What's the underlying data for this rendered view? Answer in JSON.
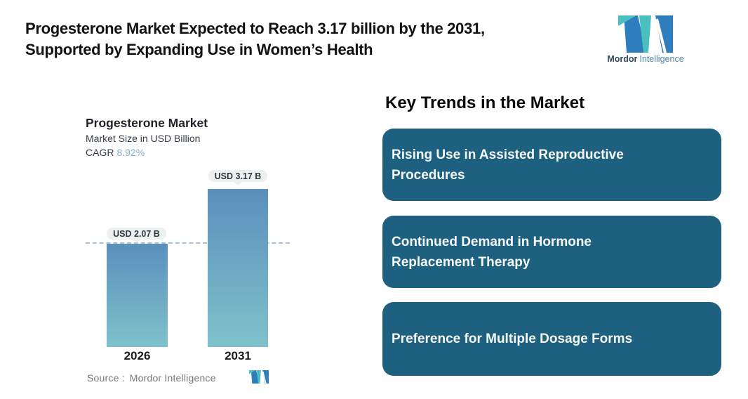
{
  "page": {
    "title_line1": "Progesterone Market Expected to Reach 3.17 billion by the 2031,",
    "title_line2": "Supported by Expanding Use in Women’s Health"
  },
  "brand": {
    "name_bold": "Mordor",
    "name_light": "Intelligence",
    "teal": "#4bbfc0",
    "blue": "#2e7dbc"
  },
  "chart": {
    "title": "Progesterone Market",
    "subtitle": "Market Size in USD Billion",
    "cagr_label": "CAGR",
    "cagr_value": "8.92%",
    "source_label": "Source :",
    "source_value": "Mordor Intelligence"
  },
  "chart_data": {
    "type": "bar",
    "title": "Progesterone Market",
    "subtitle": "Market Size in USD Billion",
    "cagr": "8.92%",
    "categories": [
      "2026",
      "2031"
    ],
    "values": [
      2.07,
      3.17
    ],
    "value_labels": [
      "USD 2.07 B",
      "USD 3.17 B"
    ],
    "ylim": [
      0,
      3.5
    ],
    "grid": false,
    "reference_line_at": 2.07,
    "bar_gradient_top": "#5b8fbc",
    "bar_gradient_bottom": "#7fc2cb",
    "reference_line_color": "#a6c0d8"
  },
  "trends": {
    "heading": "Key Trends in the Market",
    "card_color": "#1d6080",
    "items": [
      "Rising Use in Assisted Reproductive Procedures",
      "Continued Demand in Hormone Replacement Therapy",
      "Preference for Multiple Dosage Forms"
    ]
  }
}
